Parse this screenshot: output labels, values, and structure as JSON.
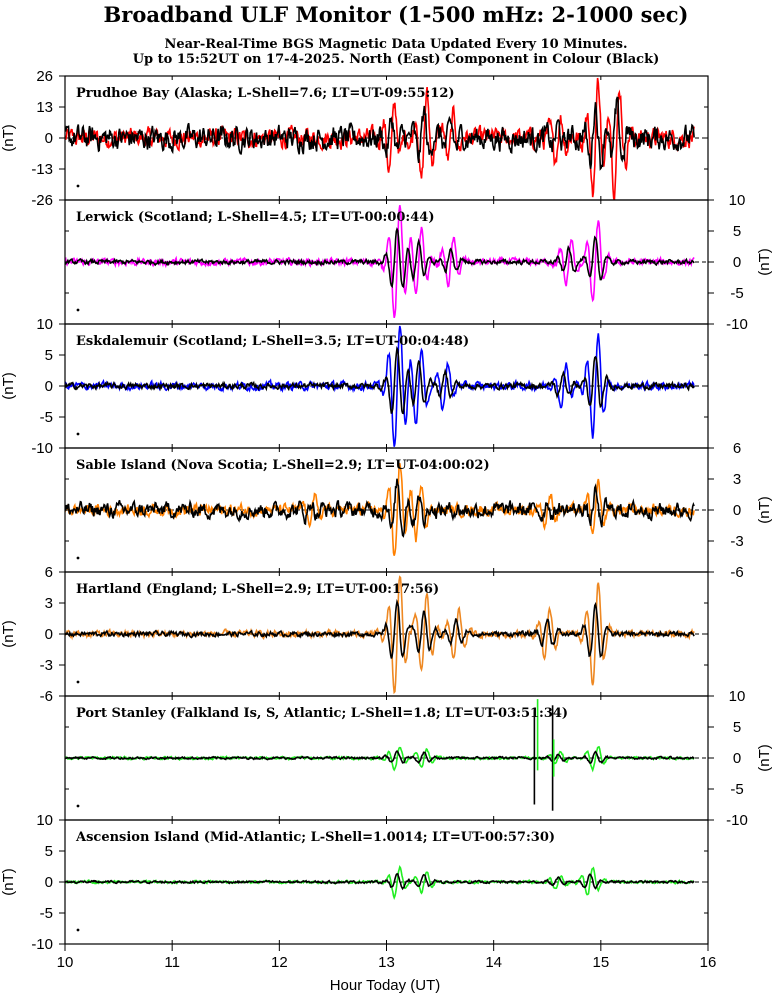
{
  "chart_data": {
    "type": "line",
    "title": "Broadband ULF Monitor (1-500 mHz: 2-1000 sec)",
    "subtitle_lines": [
      "Near-Real-Time BGS Magnetic Data Updated Every 10 Minutes.",
      "Up to 15:52UT on 17-4-2025. North (East) Component in Colour (Black)"
    ],
    "xlabel": "Hour Today (UT)",
    "xlim": [
      10,
      16
    ],
    "xticks": [
      "10",
      "11",
      "12",
      "13",
      "14",
      "15",
      "16"
    ],
    "data_end_hour": 15.87,
    "panels": [
      {
        "label": "Prudhoe Bay (Alaska; L-Shell=7.6; LT=UT-09:55:12)",
        "color": "#ff0000",
        "ylim": [
          -26,
          26
        ],
        "yticks": [
          "26",
          "13",
          "0",
          "-13",
          "-26"
        ],
        "ylabel": "(nT)",
        "axis_side": "left",
        "bursts": [
          {
            "t": 13.05,
            "amp": 14
          },
          {
            "t": 13.35,
            "amp": 20
          },
          {
            "t": 13.6,
            "amp": 10
          },
          {
            "t": 14.95,
            "amp": 26
          },
          {
            "t": 15.15,
            "amp": 22
          },
          {
            "t": 14.6,
            "amp": 9
          }
        ],
        "noise_colour": 4.5,
        "noise_black": 5.5
      },
      {
        "label": "Lerwick (Scotland; L-Shell=4.5; LT=UT-00:00:44)",
        "color": "#ff00ff",
        "ylim": [
          -10,
          10
        ],
        "yticks": [
          "10",
          "5",
          "0",
          "-5",
          "-10"
        ],
        "ylabel": "(nT)",
        "axis_side": "right",
        "bursts": [
          {
            "t": 13.1,
            "amp": 10
          },
          {
            "t": 13.3,
            "amp": 6
          },
          {
            "t": 13.6,
            "amp": 4
          },
          {
            "t": 14.95,
            "amp": 7
          },
          {
            "t": 14.7,
            "amp": 4
          }
        ],
        "noise_colour": 0.6,
        "noise_black": 0.4
      },
      {
        "label": "Eskdalemuir (Scotland; L-Shell=3.5; LT=UT-00:04:48)",
        "color": "#0000ff",
        "ylim": [
          -10,
          10
        ],
        "yticks": [
          "10",
          "5",
          "0",
          "-5",
          "-10"
        ],
        "ylabel": "(nT)",
        "axis_side": "left",
        "bursts": [
          {
            "t": 13.1,
            "amp": 11
          },
          {
            "t": 13.3,
            "amp": 7
          },
          {
            "t": 13.55,
            "amp": 4
          },
          {
            "t": 14.95,
            "amp": 9
          },
          {
            "t": 14.65,
            "amp": 4
          }
        ],
        "noise_colour": 0.7,
        "noise_black": 0.5
      },
      {
        "label": "Sable Island (Nova Scotia; L-Shell=2.9; LT=UT-04:00:02)",
        "color": "#ff8000",
        "ylim": [
          -6,
          6
        ],
        "yticks": [
          "6",
          "3",
          "0",
          "-3",
          "-6"
        ],
        "ylabel": "(nT)",
        "axis_side": "right",
        "bursts": [
          {
            "t": 13.1,
            "amp": 5
          },
          {
            "t": 13.3,
            "amp": 3
          },
          {
            "t": 12.3,
            "amp": 1.5
          },
          {
            "t": 14.95,
            "amp": 3
          },
          {
            "t": 14.5,
            "amp": 1.5
          }
        ],
        "noise_colour": 0.6,
        "noise_black": 0.8
      },
      {
        "label": "Hartland (England; L-Shell=2.9; LT=UT-00:17:56)",
        "color": "#ee8822",
        "ylim": [
          -6,
          6
        ],
        "yticks": [
          "6",
          "3",
          "0",
          "-3",
          "-6"
        ],
        "ylabel": "(nT)",
        "axis_side": "left",
        "bursts": [
          {
            "t": 13.1,
            "amp": 6
          },
          {
            "t": 13.35,
            "amp": 4
          },
          {
            "t": 13.65,
            "amp": 2.5
          },
          {
            "t": 14.95,
            "amp": 5.5
          },
          {
            "t": 14.5,
            "amp": 2.5
          }
        ],
        "noise_colour": 0.35,
        "noise_black": 0.25
      },
      {
        "label": "Port Stanley (Falkland Is, S, Atlantic; L-Shell=1.8; LT=UT-03:51:34)",
        "color": "#22ee22",
        "ylim": [
          -10,
          10
        ],
        "yticks": [
          "10",
          "5",
          "0",
          "-5",
          "-10"
        ],
        "ylabel": "(nT)",
        "axis_side": "right",
        "bursts": [
          {
            "t": 13.1,
            "amp": 2
          },
          {
            "t": 13.35,
            "amp": 1.5
          },
          {
            "t": 14.95,
            "amp": 2
          },
          {
            "t": 14.6,
            "amp": 1
          }
        ],
        "spikes": [
          {
            "t": 14.38,
            "min": -7.5,
            "max": 7.5,
            "series": "black"
          },
          {
            "t": 14.41,
            "min": -2,
            "max": 9.5,
            "series": "colour"
          },
          {
            "t": 14.55,
            "min": -8.5,
            "max": 8.5,
            "series": "black"
          },
          {
            "t": 14.56,
            "min": -3,
            "max": 3,
            "series": "colour"
          }
        ],
        "noise_colour": 0.25,
        "noise_black": 0.2
      },
      {
        "label": "Ascension Island (Mid-Atlantic; L-Shell=1.0014; LT=UT-00:57:30)",
        "color": "#22ee22",
        "ylim": [
          -10,
          10
        ],
        "yticks": [
          "10",
          "5",
          "0",
          "-5",
          "-10"
        ],
        "ylabel": "(nT)",
        "axis_side": "left",
        "bursts": [
          {
            "t": 13.1,
            "amp": 2.5
          },
          {
            "t": 13.35,
            "amp": 1.8
          },
          {
            "t": 14.9,
            "amp": 2.5
          },
          {
            "t": 14.6,
            "amp": 1.2
          }
        ],
        "noise_colour": 0.25,
        "noise_black": 0.2
      }
    ]
  }
}
